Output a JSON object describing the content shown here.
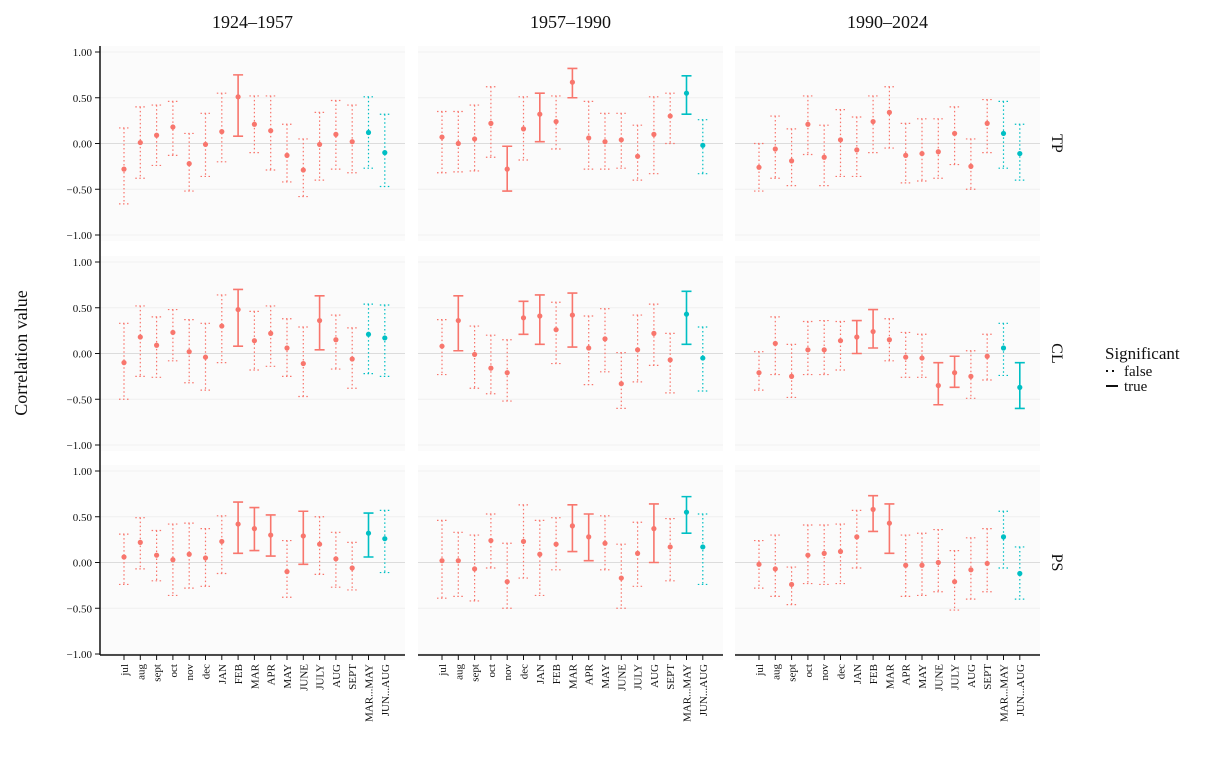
{
  "chart_data": {
    "type": "pointrange",
    "y_label": "Correlation value",
    "legend": {
      "title": "Significant",
      "entries": [
        "false",
        "true"
      ]
    },
    "columns": [
      "1924–1957",
      "1957–1990",
      "1990–2024"
    ],
    "categories": [
      "jul",
      "aug",
      "sept",
      "oct",
      "nov",
      "dec",
      "JAN",
      "FEB",
      "MAR",
      "APR",
      "MAY",
      "JUNE",
      "JULY",
      "AUG",
      "SEPT",
      "MAR...MAY",
      "JUN...AUG"
    ],
    "colors": [
      "#F8766D",
      "#F8766D",
      "#F8766D",
      "#F8766D",
      "#F8766D",
      "#F8766D",
      "#F8766D",
      "#F8766D",
      "#F8766D",
      "#F8766D",
      "#F8766D",
      "#F8766D",
      "#F8766D",
      "#F8766D",
      "#F8766D",
      "#00BFC4",
      "#00BFC4"
    ],
    "ylim": [
      -1,
      1
    ],
    "yticks": [
      {
        "value": -1,
        "label": "−1.00"
      },
      {
        "value": -0.5,
        "label": "−0.50"
      },
      {
        "value": 0,
        "label": "0.00"
      },
      {
        "value": 0.5,
        "label": "0.50"
      },
      {
        "value": 1,
        "label": "1.00"
      }
    ],
    "rows": [
      {
        "name": "TP",
        "panels": [
          {
            "values": [
              -0.28,
              0.01,
              0.09,
              0.18,
              -0.22,
              -0.01,
              0.13,
              0.51,
              0.21,
              0.14,
              -0.13,
              -0.29,
              -0.01,
              0.1,
              0.02,
              0.12,
              -0.1
            ],
            "low": [
              -0.66,
              -0.38,
              -0.24,
              -0.13,
              -0.52,
              -0.36,
              -0.2,
              0.08,
              -0.1,
              -0.29,
              -0.42,
              -0.58,
              -0.4,
              -0.28,
              -0.32,
              -0.27,
              -0.47
            ],
            "high": [
              0.17,
              0.4,
              0.42,
              0.46,
              0.11,
              0.33,
              0.55,
              0.75,
              0.52,
              0.52,
              0.21,
              0.05,
              0.34,
              0.47,
              0.42,
              0.51,
              0.32
            ],
            "significant": [
              false,
              false,
              false,
              false,
              false,
              false,
              false,
              true,
              false,
              false,
              false,
              false,
              false,
              false,
              false,
              false,
              false
            ]
          },
          {
            "values": [
              0.07,
              0.0,
              0.05,
              0.22,
              -0.28,
              0.16,
              0.32,
              0.24,
              0.67,
              0.06,
              0.02,
              0.04,
              -0.14,
              0.1,
              0.3,
              0.55,
              -0.02
            ],
            "low": [
              -0.32,
              -0.31,
              -0.3,
              -0.15,
              -0.52,
              -0.18,
              0.02,
              -0.06,
              0.5,
              -0.28,
              -0.28,
              -0.27,
              -0.4,
              -0.33,
              0.0,
              0.32,
              -0.33
            ],
            "high": [
              0.35,
              0.35,
              0.42,
              0.62,
              -0.03,
              0.51,
              0.55,
              0.52,
              0.82,
              0.46,
              0.33,
              0.33,
              0.2,
              0.51,
              0.55,
              0.74,
              0.26
            ],
            "significant": [
              false,
              false,
              false,
              false,
              true,
              false,
              true,
              false,
              true,
              false,
              false,
              false,
              false,
              false,
              false,
              true,
              false
            ]
          },
          {
            "values": [
              -0.26,
              -0.06,
              -0.19,
              0.21,
              -0.15,
              0.04,
              -0.07,
              0.24,
              0.34,
              -0.13,
              -0.11,
              -0.09,
              0.11,
              -0.25,
              0.22,
              0.11,
              -0.11
            ],
            "low": [
              -0.52,
              -0.38,
              -0.46,
              -0.12,
              -0.46,
              -0.36,
              -0.36,
              -0.1,
              -0.05,
              -0.43,
              -0.41,
              -0.38,
              -0.23,
              -0.5,
              -0.1,
              -0.27,
              -0.4
            ],
            "high": [
              0.0,
              0.3,
              0.16,
              0.52,
              0.2,
              0.37,
              0.29,
              0.52,
              0.62,
              0.22,
              0.27,
              0.27,
              0.4,
              0.05,
              0.48,
              0.46,
              0.21
            ],
            "significant": [
              false,
              false,
              false,
              false,
              false,
              false,
              false,
              false,
              false,
              false,
              false,
              false,
              false,
              false,
              false,
              false,
              false
            ]
          }
        ]
      },
      {
        "name": "CL",
        "panels": [
          {
            "values": [
              -0.1,
              0.18,
              0.09,
              0.23,
              0.02,
              -0.04,
              0.3,
              0.48,
              0.14,
              0.22,
              0.06,
              -0.11,
              0.36,
              0.15,
              -0.06,
              0.21,
              0.17
            ],
            "low": [
              -0.5,
              -0.25,
              -0.26,
              -0.08,
              -0.32,
              -0.4,
              -0.1,
              0.08,
              -0.18,
              -0.14,
              -0.25,
              -0.47,
              0.04,
              -0.17,
              -0.38,
              -0.22,
              -0.25
            ],
            "high": [
              0.33,
              0.52,
              0.4,
              0.48,
              0.37,
              0.33,
              0.64,
              0.7,
              0.46,
              0.52,
              0.38,
              0.29,
              0.63,
              0.42,
              0.28,
              0.54,
              0.53
            ],
            "significant": [
              false,
              false,
              false,
              false,
              false,
              false,
              false,
              true,
              false,
              false,
              false,
              false,
              true,
              false,
              false,
              false,
              false
            ]
          },
          {
            "values": [
              0.08,
              0.36,
              -0.01,
              -0.16,
              -0.21,
              0.39,
              0.41,
              0.26,
              0.42,
              0.06,
              0.16,
              -0.33,
              0.04,
              0.22,
              -0.07,
              0.43,
              -0.05
            ],
            "low": [
              -0.23,
              0.03,
              -0.38,
              -0.44,
              -0.52,
              0.21,
              0.1,
              -0.11,
              0.07,
              -0.34,
              -0.2,
              -0.6,
              -0.31,
              -0.13,
              -0.43,
              0.1,
              -0.41
            ],
            "high": [
              0.37,
              0.63,
              0.3,
              0.2,
              0.15,
              0.57,
              0.64,
              0.56,
              0.66,
              0.41,
              0.49,
              0.01,
              0.42,
              0.54,
              0.22,
              0.68,
              0.29
            ],
            "significant": [
              false,
              true,
              false,
              false,
              false,
              true,
              true,
              false,
              true,
              false,
              false,
              false,
              false,
              false,
              false,
              true,
              false
            ]
          },
          {
            "values": [
              -0.21,
              0.11,
              -0.25,
              0.04,
              0.04,
              0.14,
              0.18,
              0.24,
              0.15,
              -0.04,
              -0.05,
              -0.35,
              -0.21,
              -0.25,
              -0.03,
              0.06,
              -0.37
            ],
            "low": [
              -0.4,
              -0.23,
              -0.48,
              -0.23,
              -0.23,
              -0.18,
              0.0,
              0.06,
              -0.08,
              -0.26,
              -0.26,
              -0.56,
              -0.37,
              -0.49,
              -0.29,
              -0.24,
              -0.6
            ],
            "high": [
              0.02,
              0.4,
              0.1,
              0.35,
              0.36,
              0.35,
              0.36,
              0.48,
              0.38,
              0.23,
              0.21,
              -0.1,
              -0.03,
              0.03,
              0.21,
              0.33,
              -0.1
            ],
            "significant": [
              false,
              false,
              false,
              false,
              false,
              false,
              true,
              true,
              false,
              false,
              false,
              true,
              true,
              false,
              false,
              false,
              true
            ]
          }
        ]
      },
      {
        "name": "PS",
        "panels": [
          {
            "values": [
              0.06,
              0.22,
              0.08,
              0.03,
              0.09,
              0.05,
              0.23,
              0.42,
              0.37,
              0.3,
              -0.1,
              0.29,
              0.2,
              0.04,
              -0.06,
              0.32,
              0.26
            ],
            "low": [
              -0.24,
              -0.07,
              -0.2,
              -0.36,
              -0.28,
              -0.26,
              -0.12,
              0.1,
              0.13,
              0.07,
              -0.38,
              -0.02,
              -0.13,
              -0.27,
              -0.3,
              0.06,
              -0.11
            ],
            "high": [
              0.31,
              0.49,
              0.35,
              0.42,
              0.43,
              0.37,
              0.51,
              0.66,
              0.6,
              0.52,
              0.24,
              0.56,
              0.5,
              0.33,
              0.22,
              0.54,
              0.57
            ],
            "significant": [
              false,
              false,
              false,
              false,
              false,
              false,
              false,
              true,
              true,
              true,
              false,
              true,
              false,
              false,
              false,
              true,
              false
            ]
          },
          {
            "values": [
              0.02,
              0.02,
              -0.07,
              0.24,
              -0.21,
              0.23,
              0.09,
              0.2,
              0.4,
              0.28,
              0.21,
              -0.17,
              0.1,
              0.37,
              0.17,
              0.55,
              0.17
            ],
            "low": [
              -0.39,
              -0.37,
              -0.42,
              -0.06,
              -0.5,
              -0.17,
              -0.36,
              -0.08,
              0.12,
              0.02,
              -0.08,
              -0.5,
              -0.26,
              0.0,
              -0.2,
              0.32,
              -0.24
            ],
            "high": [
              0.46,
              0.33,
              0.3,
              0.53,
              0.21,
              0.63,
              0.46,
              0.49,
              0.63,
              0.53,
              0.51,
              0.2,
              0.44,
              0.64,
              0.48,
              0.72,
              0.53
            ],
            "significant": [
              false,
              false,
              false,
              false,
              false,
              false,
              false,
              false,
              true,
              true,
              false,
              false,
              false,
              true,
              false,
              true,
              false
            ]
          },
          {
            "values": [
              -0.02,
              -0.07,
              -0.24,
              0.08,
              0.1,
              0.12,
              0.28,
              0.58,
              0.43,
              -0.03,
              -0.03,
              0.0,
              -0.21,
              -0.08,
              -0.01,
              0.28,
              -0.12
            ],
            "low": [
              -0.28,
              -0.37,
              -0.46,
              -0.23,
              -0.24,
              -0.23,
              -0.06,
              0.34,
              0.1,
              -0.37,
              -0.36,
              -0.32,
              -0.52,
              -0.4,
              -0.32,
              -0.06,
              -0.4
            ],
            "high": [
              0.24,
              0.3,
              -0.05,
              0.41,
              0.41,
              0.42,
              0.57,
              0.73,
              0.64,
              0.3,
              0.32,
              0.36,
              0.13,
              0.27,
              0.37,
              0.56,
              0.17
            ],
            "significant": [
              false,
              false,
              false,
              false,
              false,
              false,
              false,
              true,
              true,
              false,
              false,
              false,
              false,
              false,
              false,
              false,
              false
            ]
          }
        ]
      }
    ]
  }
}
